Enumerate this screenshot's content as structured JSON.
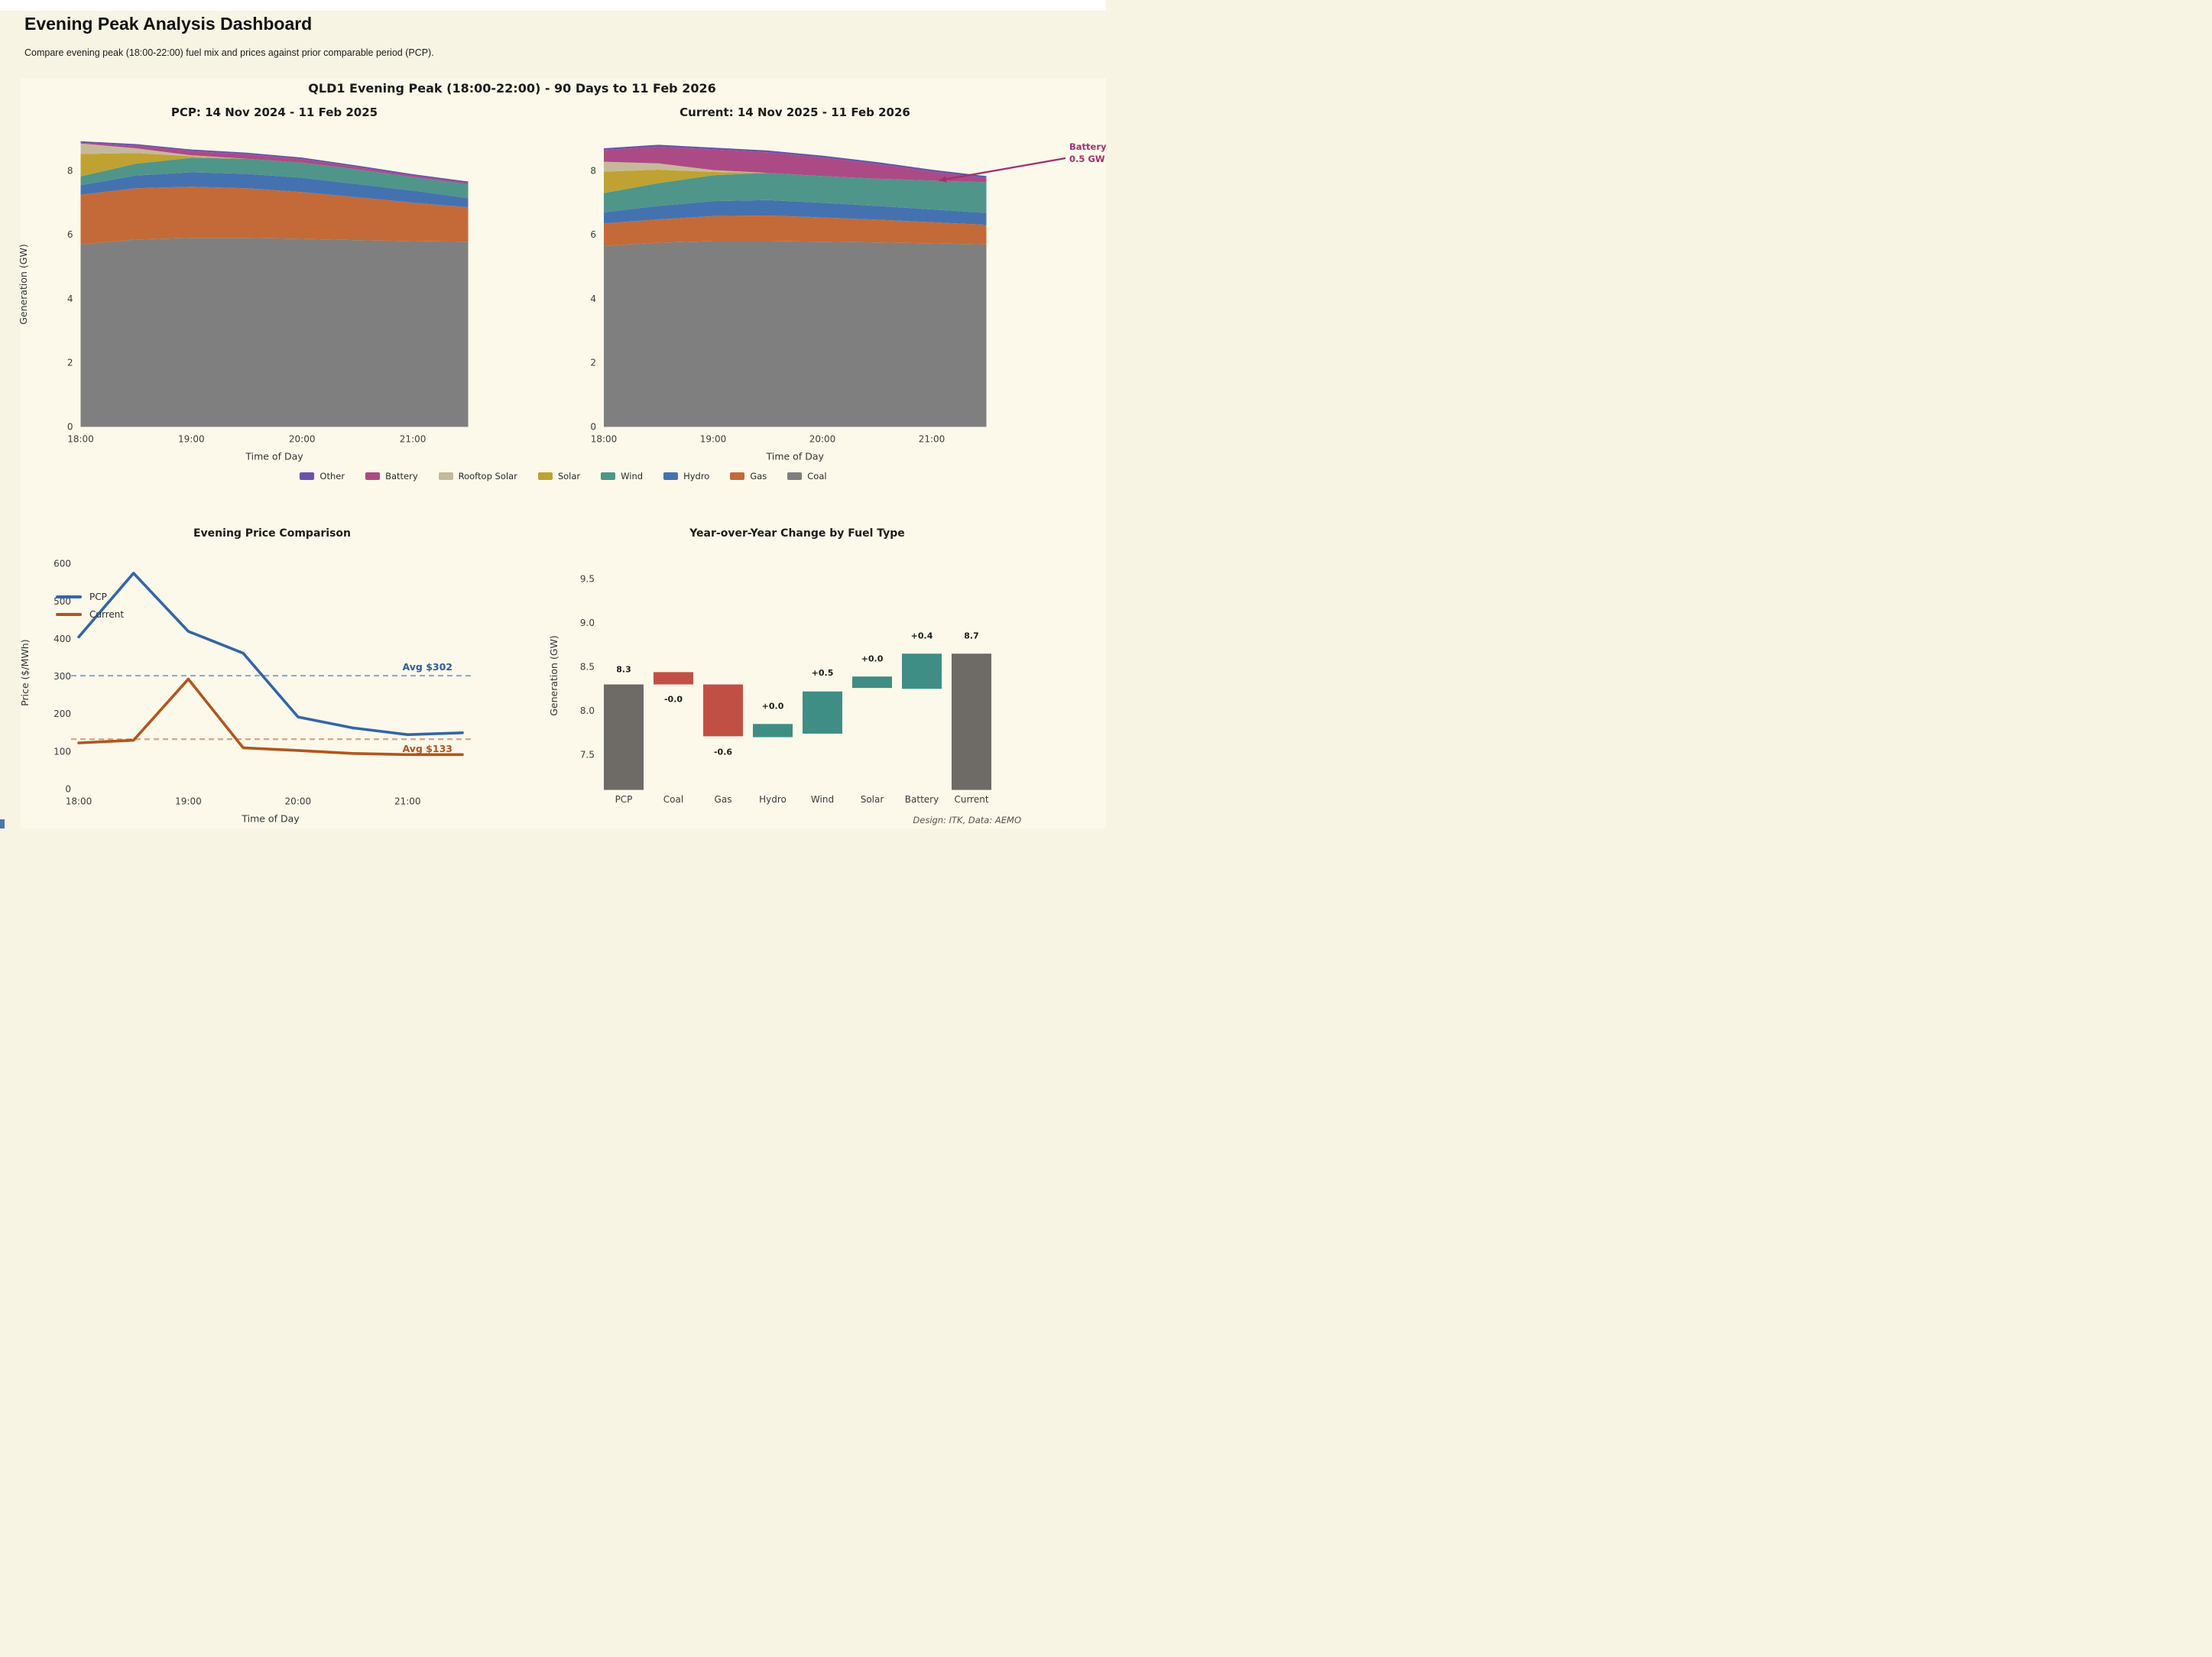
{
  "page": {
    "title": "Evening Peak Analysis Dashboard",
    "subtitle": "Compare evening peak (18:00-22:00) fuel mix and prices against prior comparable period (PCP).",
    "footer": "Design: ITK, Data: AEMO"
  },
  "figure": {
    "suptitle": "QLD1 Evening Peak (18:00-22:00) - 90 Days to 11 Feb 2026"
  },
  "colors": {
    "background": "#f7f4e3",
    "figure_bg": "#fcf9ea",
    "topbar": "#ffffff",
    "tick_text": "#3c3c3c",
    "title_text": "#1c1c1c",
    "annotation": "#9e3272",
    "bottom_sliver": "#4f74a8"
  },
  "fuel_legend": [
    {
      "label": "Other",
      "color": "#6b52ae"
    },
    {
      "label": "Battery",
      "color": "#ac4a85"
    },
    {
      "label": "Rooftop Solar",
      "color": "#c6b999"
    },
    {
      "label": "Solar",
      "color": "#bfa232"
    },
    {
      "label": "Wind",
      "color": "#4f9589"
    },
    {
      "label": "Hydro",
      "color": "#4472b0"
    },
    {
      "label": "Gas",
      "color": "#c36a38"
    },
    {
      "label": "Coal",
      "color": "#7f7f7f"
    }
  ],
  "chart_data": [
    {
      "id": "pcp_area",
      "type": "area",
      "title": "PCP: 14 Nov 2024 - 11 Feb 2025",
      "xlabel": "Time of Day",
      "ylabel": "Generation (GW)",
      "x_labels": [
        "18:00",
        "18:30",
        "19:00",
        "19:30",
        "20:00",
        "20:30",
        "21:00",
        "21:30"
      ],
      "x_ticks": [
        "18:00",
        "19:00",
        "20:00",
        "21:00"
      ],
      "ytick_values": [
        0,
        2,
        4,
        6,
        8
      ],
      "ytick_labels": [
        "0",
        "2",
        "4",
        "6",
        "8"
      ],
      "ylim": [
        0,
        9.3
      ],
      "series": [
        {
          "name": "Coal",
          "color": "#7f7f7f",
          "values": [
            5.7,
            5.85,
            5.9,
            5.9,
            5.87,
            5.83,
            5.8,
            5.78
          ]
        },
        {
          "name": "Gas",
          "color": "#c36a38",
          "values": [
            1.55,
            1.6,
            1.6,
            1.55,
            1.46,
            1.34,
            1.2,
            1.08
          ]
        },
        {
          "name": "Hydro",
          "color": "#4472b0",
          "values": [
            0.3,
            0.4,
            0.45,
            0.45,
            0.45,
            0.41,
            0.38,
            0.28
          ]
        },
        {
          "name": "Wind",
          "color": "#4f9589",
          "values": [
            0.27,
            0.37,
            0.45,
            0.47,
            0.47,
            0.46,
            0.42,
            0.43
          ]
        },
        {
          "name": "Solar",
          "color": "#bfa232",
          "values": [
            0.7,
            0.33,
            0.05,
            0.0,
            0.0,
            0.0,
            0.0,
            0.0
          ]
        },
        {
          "name": "Rooftop Solar",
          "color": "#c6b999",
          "values": [
            0.33,
            0.15,
            0.03,
            0.0,
            0.0,
            0.0,
            0.0,
            0.0
          ]
        },
        {
          "name": "Battery",
          "color": "#ac4a85",
          "values": [
            0.02,
            0.08,
            0.13,
            0.14,
            0.11,
            0.07,
            0.04,
            0.04
          ]
        },
        {
          "name": "Other",
          "color": "#6b52ae",
          "values": [
            0.05,
            0.05,
            0.05,
            0.05,
            0.05,
            0.05,
            0.05,
            0.05
          ]
        }
      ]
    },
    {
      "id": "current_area",
      "type": "area",
      "title": "Current: 14 Nov 2025 - 11 Feb 2026",
      "xlabel": "Time of Day",
      "ylabel": "",
      "x_labels": [
        "18:00",
        "18:30",
        "19:00",
        "19:30",
        "20:00",
        "20:30",
        "21:00",
        "21:30"
      ],
      "x_ticks": [
        "18:00",
        "19:00",
        "20:00",
        "21:00"
      ],
      "ytick_values": [
        0,
        2,
        4,
        6,
        8
      ],
      "ytick_labels": [
        "0",
        "2",
        "4",
        "6",
        "8"
      ],
      "ylim": [
        0,
        9.3
      ],
      "series": [
        {
          "name": "Coal",
          "color": "#7f7f7f",
          "values": [
            5.65,
            5.75,
            5.8,
            5.8,
            5.78,
            5.76,
            5.73,
            5.7
          ]
        },
        {
          "name": "Gas",
          "color": "#c36a38",
          "values": [
            0.7,
            0.73,
            0.78,
            0.8,
            0.76,
            0.71,
            0.66,
            0.61
          ]
        },
        {
          "name": "Hydro",
          "color": "#4472b0",
          "values": [
            0.35,
            0.42,
            0.47,
            0.48,
            0.46,
            0.43,
            0.4,
            0.37
          ]
        },
        {
          "name": "Wind",
          "color": "#4f9589",
          "values": [
            0.6,
            0.71,
            0.81,
            0.85,
            0.83,
            0.85,
            0.9,
            0.96
          ]
        },
        {
          "name": "Solar",
          "color": "#bfa232",
          "values": [
            0.67,
            0.42,
            0.1,
            0.0,
            0.0,
            0.0,
            0.0,
            0.0
          ]
        },
        {
          "name": "Rooftop Solar",
          "color": "#c6b999",
          "values": [
            0.31,
            0.2,
            0.06,
            0.0,
            0.0,
            0.0,
            0.0,
            0.0
          ]
        },
        {
          "name": "Battery",
          "color": "#ac4a85",
          "values": [
            0.36,
            0.52,
            0.64,
            0.64,
            0.58,
            0.46,
            0.28,
            0.13
          ]
        },
        {
          "name": "Other",
          "color": "#6b52ae",
          "values": [
            0.06,
            0.06,
            0.06,
            0.06,
            0.06,
            0.06,
            0.06,
            0.06
          ]
        }
      ],
      "annotation": {
        "line1": "Battery",
        "line2": "0.5 GW",
        "color": "#9e3272"
      }
    },
    {
      "id": "price",
      "type": "line",
      "title": "Evening Price Comparison",
      "xlabel": "Time of Day",
      "ylabel": "Price ($/MWh)",
      "x_labels": [
        "18:00",
        "18:30",
        "19:00",
        "19:30",
        "20:00",
        "20:30",
        "21:00",
        "21:30"
      ],
      "x_ticks": [
        "18:00",
        "19:00",
        "20:00",
        "21:00"
      ],
      "ytick_values": [
        0,
        100,
        200,
        300,
        400,
        500,
        600
      ],
      "ytick_labels": [
        "0",
        "100",
        "200",
        "300",
        "400",
        "500",
        "600"
      ],
      "ylim": [
        0,
        660
      ],
      "series": [
        {
          "name": "PCP",
          "color": "#3465aa",
          "values": [
            405,
            575,
            420,
            362,
            192,
            163,
            145,
            150
          ]
        },
        {
          "name": "Current",
          "color": "#b2551d",
          "values": [
            123,
            130,
            293,
            110,
            103,
            95,
            92,
            92
          ]
        }
      ],
      "avg_lines": [
        {
          "label": "Avg $302",
          "value": 302,
          "line_color": "#8aabd8",
          "label_color": "#2d5c9e",
          "label_side": "above"
        },
        {
          "label": "Avg $133",
          "value": 133,
          "line_color": "#dca387",
          "label_color": "#b0541b",
          "label_side": "below"
        }
      ]
    },
    {
      "id": "waterfall",
      "type": "waterfall",
      "title": "Year-over-Year Change by Fuel Type",
      "ylabel": "Generation (GW)",
      "ytick_values": [
        7.5,
        8.0,
        8.5,
        9.0,
        9.5
      ],
      "ytick_labels": [
        "7.5",
        "8.0",
        "8.5",
        "9.0",
        "9.5"
      ],
      "ylim": [
        7.1,
        9.75
      ],
      "bars": [
        {
          "name": "PCP",
          "label": "8.3",
          "bottom": 7.1,
          "top": 8.3,
          "color": "#6e6a66",
          "label_value": 8.44
        },
        {
          "name": "Coal",
          "label": "-0.0",
          "bottom": 8.3,
          "top": 8.44,
          "color": "#c24f44",
          "label_value": 8.1
        },
        {
          "name": "Gas",
          "label": "-0.6",
          "bottom": 7.71,
          "top": 8.3,
          "color": "#c24f44",
          "label_value": 7.5
        },
        {
          "name": "Hydro",
          "label": "+0.0",
          "bottom": 7.7,
          "top": 7.85,
          "color": "#3e8e85",
          "label_value": 8.02
        },
        {
          "name": "Wind",
          "label": "+0.5",
          "bottom": 7.74,
          "top": 8.22,
          "color": "#3e8e85",
          "label_value": 8.4
        },
        {
          "name": "Solar",
          "label": "+0.0",
          "bottom": 8.26,
          "top": 8.39,
          "color": "#3e8e85",
          "label_value": 8.56
        },
        {
          "name": "Battery",
          "label": "+0.4",
          "bottom": 8.25,
          "top": 8.65,
          "color": "#3e8e85",
          "label_value": 8.82
        },
        {
          "name": "Current",
          "label": "8.7",
          "bottom": 7.1,
          "top": 8.65,
          "color": "#6e6a66",
          "label_value": 8.82
        }
      ]
    }
  ]
}
